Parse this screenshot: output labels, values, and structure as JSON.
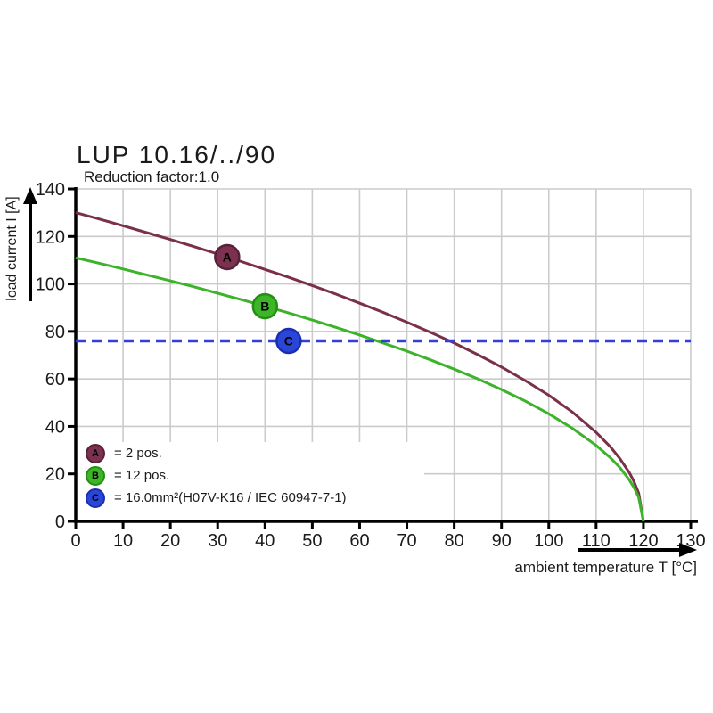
{
  "title": "LUP 10.16/../90",
  "subtitle": "Reduction factor:1.0",
  "axes": {
    "x_label": "ambient temperature T [°C]",
    "y_label": "load current I [A]"
  },
  "colors": {
    "axis": "#000000",
    "grid": "#cbcbcb",
    "curve_a": "#7a3048",
    "curve_b": "#3cb32a",
    "dashed_c": "#3340d8",
    "marker_a_fill": "#7c3150",
    "marker_a_border": "#57213a",
    "marker_b_fill": "#3eb428",
    "marker_b_border": "#238f13",
    "marker_c_fill": "#2946d8",
    "marker_c_border": "#1b2fae"
  },
  "legend": [
    {
      "key": "A",
      "label": "= 2 pos.",
      "color": "#7c3150",
      "border": "#57213a"
    },
    {
      "key": "B",
      "label": "= 12 pos.",
      "color": "#3eb428",
      "border": "#238f13"
    },
    {
      "key": "C",
      "label": "= 16.0mm²(H07V-K16 / IEC 60947-7-1)",
      "color": "#2946d8",
      "border": "#1b2fae"
    }
  ],
  "chart_data": {
    "type": "line",
    "title": "LUP 10.16/../90",
    "subtitle": "Reduction factor:1.0",
    "xlabel": "ambient temperature T [°C]",
    "ylabel": "load current I [A]",
    "xlim": [
      0,
      130
    ],
    "ylim": [
      0,
      140
    ],
    "xticks": [
      0,
      10,
      20,
      30,
      40,
      50,
      60,
      70,
      80,
      90,
      100,
      110,
      120,
      130
    ],
    "yticks": [
      0,
      20,
      40,
      60,
      80,
      100,
      120,
      140
    ],
    "grid": true,
    "legend_position": "lower-left-inside",
    "series": [
      {
        "name": "A = 2 pos.",
        "color": "#7a3048",
        "style": "solid",
        "x": [
          0,
          5,
          10,
          15,
          20,
          25,
          30,
          35,
          40,
          45,
          50,
          55,
          60,
          65,
          70,
          75,
          80,
          85,
          90,
          95,
          100,
          105,
          110,
          113,
          115,
          117,
          118,
          119,
          120
        ],
        "y": [
          130.0,
          127.3,
          124.5,
          121.6,
          118.7,
          115.7,
          112.6,
          109.4,
          106.1,
          102.8,
          99.3,
          95.7,
          91.9,
          88.0,
          83.9,
          79.6,
          75.1,
          70.2,
          65.0,
          59.3,
          53.1,
          46.0,
          37.5,
          31.4,
          26.5,
          20.6,
          16.8,
          11.9,
          0.0
        ]
      },
      {
        "name": "B = 12 pos.",
        "color": "#3cb32a",
        "style": "solid",
        "x": [
          0,
          5,
          10,
          15,
          20,
          25,
          30,
          35,
          40,
          45,
          50,
          55,
          60,
          65,
          70,
          75,
          80,
          85,
          90,
          95,
          100,
          105,
          110,
          113,
          115,
          117,
          118,
          119,
          120
        ],
        "y": [
          111.0,
          108.7,
          106.3,
          103.8,
          101.3,
          98.8,
          96.1,
          93.4,
          90.6,
          87.8,
          84.8,
          81.7,
          78.5,
          75.1,
          71.7,
          68.0,
          64.1,
          60.0,
          55.5,
          50.7,
          45.3,
          39.2,
          32.0,
          26.8,
          22.7,
          17.5,
          14.3,
          10.1,
          0.0
        ]
      },
      {
        "name": "C = 16.0mm²(H07V-K16 / IEC 60947-7-1) reference limit",
        "color": "#3340d8",
        "style": "dashed",
        "x": [
          0,
          130
        ],
        "y": [
          76,
          76
        ]
      }
    ],
    "point_markers": [
      {
        "label": "A",
        "x": 32,
        "y": 111.3,
        "fill": "#7c3150",
        "stroke": "#57213a"
      },
      {
        "label": "B",
        "x": 40,
        "y": 90.6,
        "fill": "#3eb428",
        "stroke": "#238f13"
      },
      {
        "label": "C",
        "x": 45,
        "y": 76.0,
        "fill": "#2946d8",
        "stroke": "#1b2fae"
      }
    ]
  }
}
